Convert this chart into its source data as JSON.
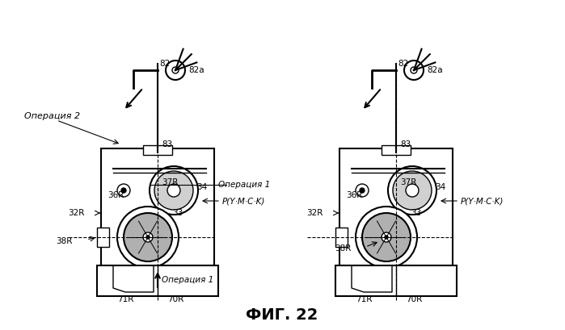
{
  "title": "ФИГ. 22",
  "title_fontsize": 14,
  "background_color": "#ffffff",
  "line_color": "#000000",
  "labels": {
    "82_left": "82",
    "82a_left": "82a",
    "83_left": "83",
    "34_left": "34",
    "37R_left": "37R",
    "36R_left": "36R",
    "32R_left": "32R",
    "33_left": "33",
    "38R_left": "38R",
    "70R_left": "70R",
    "71R_left": "71R",
    "P_left": "P(Y·M·C·K)",
    "op1_label": "Операция 1",
    "op1_label2": "Операция 1",
    "op2_label": "Операция 2",
    "82_right": "82",
    "82a_right": "82a",
    "83_right": "83",
    "34_right": "34",
    "37R_right": "37R",
    "36R_right": "36R",
    "32R_right": "32R",
    "33_right": "33",
    "38R_right": "38R",
    "70R_right": "70R",
    "71R_right": "71R",
    "P_right": "P(Y·M·C·K)"
  }
}
